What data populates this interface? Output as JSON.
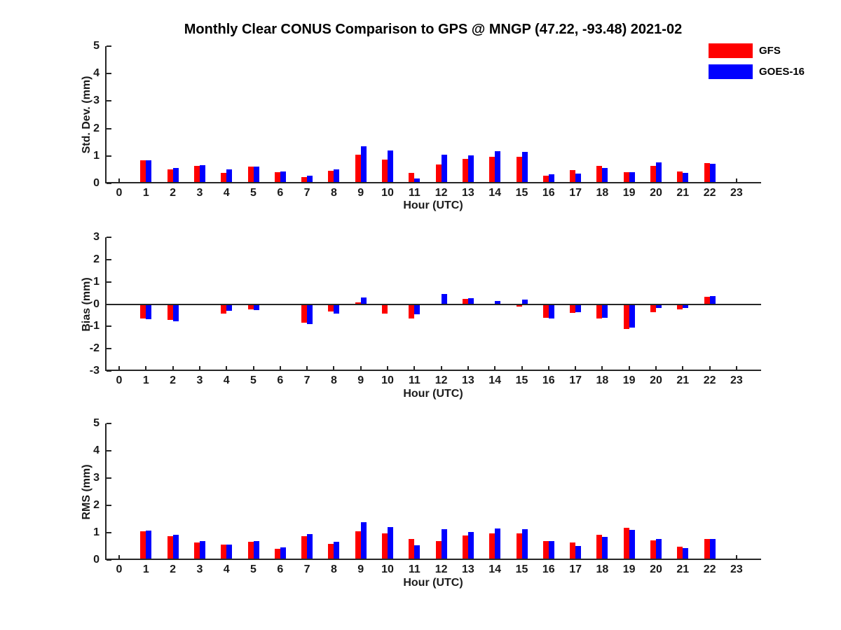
{
  "title": "Monthly Clear CONUS Comparison to GPS @ MNGP (47.22, -93.48) 2021-02",
  "legend": {
    "items": [
      {
        "label": "GFS",
        "color": "#ff0000"
      },
      {
        "label": "GOES-16",
        "color": "#0000ff"
      }
    ]
  },
  "colors": {
    "gfs": "#ff0000",
    "goes16": "#0000ff",
    "axis": "#262626"
  },
  "chart_data": [
    {
      "type": "bar",
      "title": "Monthly Clear CONUS Comparison to GPS @ MNGP (47.22, -93.48) 2021-02",
      "ylabel": "Std. Dev. (mm)",
      "xlabel": "Hour (UTC)",
      "ylim": [
        0,
        5
      ],
      "yticks": [
        0,
        1,
        2,
        3,
        4,
        5
      ],
      "x": [
        0,
        1,
        2,
        3,
        4,
        5,
        6,
        7,
        8,
        9,
        10,
        11,
        12,
        13,
        14,
        15,
        16,
        17,
        18,
        19,
        20,
        21,
        22,
        23
      ],
      "grid": false,
      "legend_position": "top-right",
      "series": [
        {
          "name": "GFS",
          "color": "#ff0000",
          "values": [
            null,
            0.85,
            0.5,
            0.63,
            0.38,
            0.62,
            0.4,
            0.23,
            0.47,
            1.05,
            0.87,
            0.37,
            0.68,
            0.89,
            0.96,
            0.96,
            0.28,
            0.48,
            0.63,
            0.42,
            0.65,
            0.43,
            0.75,
            null
          ]
        },
        {
          "name": "GOES-16",
          "color": "#0000ff",
          "values": [
            null,
            0.83,
            0.55,
            0.67,
            0.5,
            0.62,
            0.44,
            0.27,
            0.52,
            1.35,
            1.2,
            0.17,
            1.05,
            1.01,
            1.17,
            1.15,
            0.32,
            0.35,
            0.57,
            0.4,
            0.77,
            0.39,
            0.72,
            null
          ]
        }
      ]
    },
    {
      "type": "bar",
      "title": "",
      "ylabel": "Bias (mm)",
      "xlabel": "Hour (UTC)",
      "ylim": [
        -3,
        3
      ],
      "yticks": [
        -3,
        -2,
        -1,
        0,
        1,
        2,
        3
      ],
      "x": [
        0,
        1,
        2,
        3,
        4,
        5,
        6,
        7,
        8,
        9,
        10,
        11,
        12,
        13,
        14,
        15,
        16,
        17,
        18,
        19,
        20,
        21,
        22,
        23
      ],
      "grid": false,
      "zero_line": true,
      "series": [
        {
          "name": "GFS",
          "color": "#ff0000",
          "values": [
            null,
            -0.65,
            -0.72,
            -0.04,
            -0.42,
            -0.24,
            -0.06,
            -0.84,
            -0.33,
            0.07,
            -0.42,
            -0.63,
            0.03,
            0.22,
            0.02,
            -0.12,
            -0.62,
            -0.4,
            -0.65,
            -1.12,
            -0.35,
            -0.24,
            0.32,
            null
          ]
        },
        {
          "name": "GOES-16",
          "color": "#0000ff",
          "values": [
            null,
            -0.68,
            -0.78,
            -0.05,
            -0.3,
            -0.27,
            -0.04,
            -0.89,
            -0.42,
            0.31,
            -0.02,
            -0.47,
            0.45,
            0.26,
            0.13,
            0.21,
            -0.63,
            -0.35,
            -0.61,
            -1.05,
            -0.16,
            -0.16,
            0.37,
            null
          ]
        }
      ]
    },
    {
      "type": "bar",
      "title": "",
      "ylabel": "RMS (mm)",
      "xlabel": "Hour (UTC)",
      "ylim": [
        0,
        5
      ],
      "yticks": [
        0,
        1,
        2,
        3,
        4,
        5
      ],
      "x": [
        0,
        1,
        2,
        3,
        4,
        5,
        6,
        7,
        8,
        9,
        10,
        11,
        12,
        13,
        14,
        15,
        16,
        17,
        18,
        19,
        20,
        21,
        22,
        23
      ],
      "grid": false,
      "series": [
        {
          "name": "GFS",
          "color": "#ff0000",
          "values": [
            null,
            1.05,
            0.87,
            0.65,
            0.57,
            0.67,
            0.42,
            0.88,
            0.58,
            1.05,
            0.97,
            0.78,
            0.68,
            0.91,
            0.97,
            0.98,
            0.69,
            0.63,
            0.93,
            1.18,
            0.72,
            0.48,
            0.78,
            null
          ]
        },
        {
          "name": "GOES-16",
          "color": "#0000ff",
          "values": [
            null,
            1.08,
            0.93,
            0.7,
            0.57,
            0.7,
            0.45,
            0.95,
            0.67,
            1.38,
            1.2,
            0.55,
            1.13,
            1.02,
            1.16,
            1.14,
            0.7,
            0.52,
            0.85,
            1.09,
            0.78,
            0.44,
            0.78,
            null
          ]
        }
      ]
    }
  ]
}
